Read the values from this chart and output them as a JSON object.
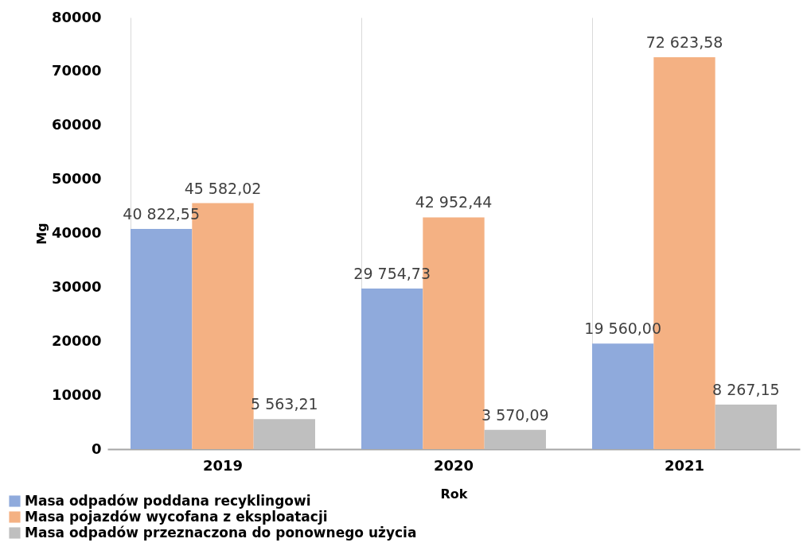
{
  "chart_data": {
    "type": "bar",
    "xlabel": "Rok",
    "ylabel": "Mg",
    "categories": [
      "2019",
      "2020",
      "2021"
    ],
    "series": [
      {
        "name": "Masa odpadów poddana recyklingowi",
        "color": "#8faadc",
        "values": [
          40822.55,
          29754.73,
          19560.0
        ],
        "value_labels": [
          "40 822,55",
          "29 754,73",
          "19 560,00"
        ]
      },
      {
        "name": "Masa pojazdów wycofana z eksploatacji",
        "color": "#f4b183",
        "values": [
          45582.02,
          42952.44,
          72623.58
        ],
        "value_labels": [
          "45 582,02",
          "42 952,44",
          "72 623,58"
        ]
      },
      {
        "name": "Masa odpadów przeznaczona do ponownego użycia",
        "color": "#bfbfbf",
        "values": [
          5563.21,
          3570.09,
          8267.15
        ],
        "value_labels": [
          "5 563,21",
          "3 570,09",
          "8 267,15"
        ]
      }
    ],
    "ylim": [
      0,
      80000
    ],
    "yticks": [
      0,
      10000,
      20000,
      30000,
      40000,
      50000,
      60000,
      70000,
      80000
    ],
    "grid": "x",
    "legend": "bottom"
  }
}
